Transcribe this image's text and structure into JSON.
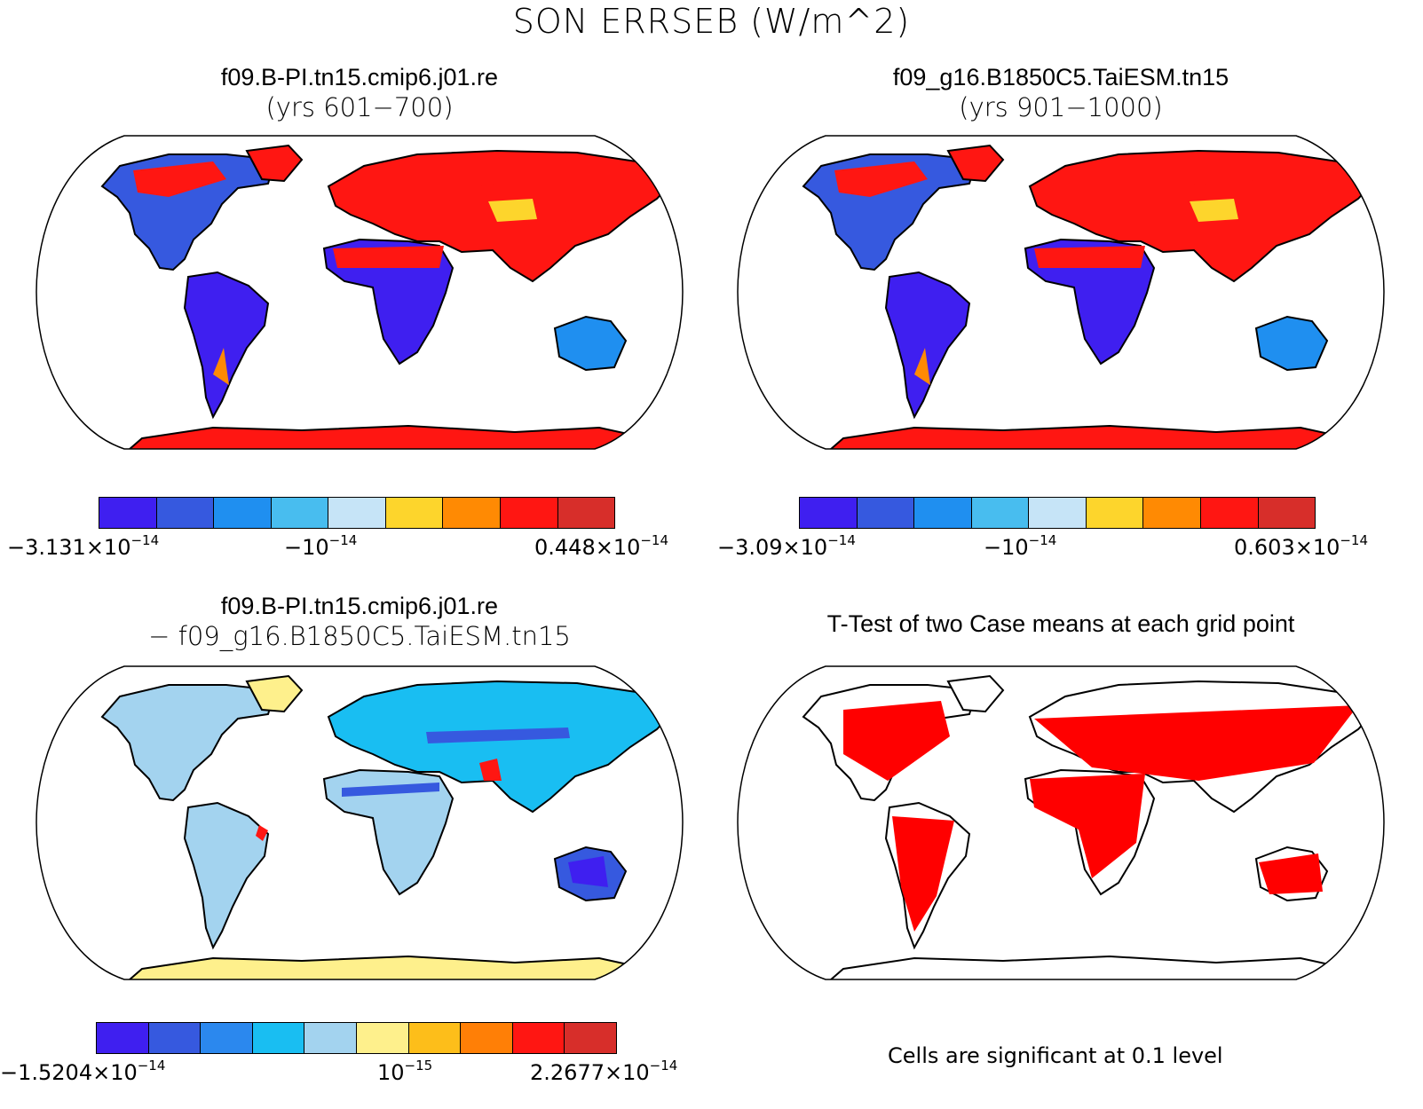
{
  "title": "SON ERRSEB (W/m^2)",
  "panels": [
    {
      "title_line1": "f09.B-PI.tn15.cmip6.j01.re",
      "title_line2": "(yrs 601−700)",
      "colorbar": {
        "colors": [
          "#3f1ff0",
          "#3659df",
          "#1f8ff0",
          "#48bdef",
          "#c6e4f7",
          "#fdd52c",
          "#ff8a03",
          "#ff1612",
          "#d72e2a"
        ],
        "labels": [
          {
            "mantissa": "−3.131×10",
            "exponent": "−14"
          },
          {
            "mantissa": "−10",
            "exponent": "−14"
          },
          {
            "mantissa": "0.448×10",
            "exponent": "−14"
          }
        ]
      }
    },
    {
      "title_line1": "f09_g16.B1850C5.TaiESM.tn15",
      "title_line2": "(yrs 901−1000)",
      "colorbar": {
        "colors": [
          "#3f1ff0",
          "#3659df",
          "#1f8ff0",
          "#48bdef",
          "#c6e4f7",
          "#fdd52c",
          "#ff8a03",
          "#ff1612",
          "#d72e2a"
        ],
        "labels": [
          {
            "mantissa": "−3.09×10",
            "exponent": "−14"
          },
          {
            "mantissa": "−10",
            "exponent": "−14"
          },
          {
            "mantissa": "0.603×10",
            "exponent": "−14"
          }
        ]
      }
    },
    {
      "title_line1": "f09.B-PI.tn15.cmip6.j01.re",
      "title_line2": "− f09_g16.B1850C5.TaiESM.tn15",
      "colorbar": {
        "colors": [
          "#3f1ff0",
          "#3659df",
          "#2b88ee",
          "#19bef2",
          "#a3d3ef",
          "#fef08c",
          "#fdbe1a",
          "#ff7f06",
          "#ff1612",
          "#d72e2a"
        ],
        "labels": [
          {
            "mantissa": "−1.5204×10",
            "exponent": "−14"
          },
          {
            "mantissa": "10",
            "exponent": "−15"
          },
          {
            "mantissa": "2.2677×10",
            "exponent": "−14"
          }
        ]
      }
    },
    {
      "title_line1": "T-Test of two Case means at each grid point",
      "title_line2": "",
      "note": "Cells are significant at 0.1 level",
      "significance_color": "#ff0000"
    }
  ]
}
